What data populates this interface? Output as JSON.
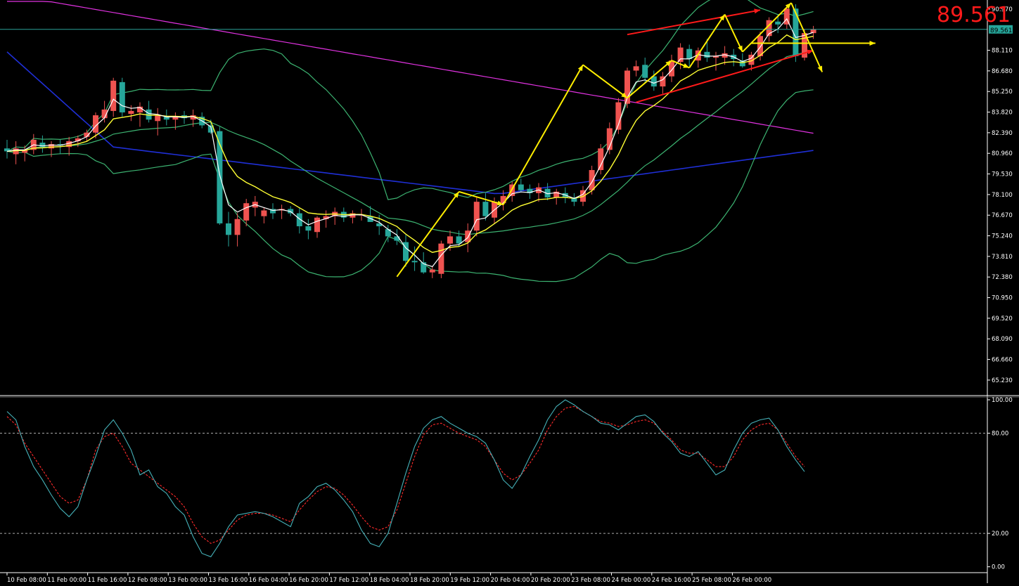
{
  "header": {
    "last_price": "89.561"
  },
  "colors": {
    "background": "#000000",
    "axis": "#ffffff",
    "bull_candle": "#ef5350",
    "bear_candle": "#26a69a",
    "bollinger": "#3cb371",
    "ma_fast": "#ffffff",
    "ma_mid": "#ffff33",
    "ma_blue": "#1f2fd6",
    "ma_magenta": "#e032e0",
    "stoch_main": "#45b1b8",
    "stoch_signal": "#ff2a2a",
    "annotation_yellow": "#ffee00",
    "annotation_red": "#ff1a1a",
    "price_line": "#2aa198",
    "price_tag_bg": "#26a69a"
  },
  "chart_data": [
    {
      "type": "candlestick",
      "panel": "price",
      "y_ticks": [
        "90.970",
        "89.561",
        "88.110",
        "86.680",
        "85.250",
        "83.820",
        "82.390",
        "80.960",
        "79.530",
        "78.100",
        "76.670",
        "75.240",
        "73.810",
        "72.380",
        "70.950",
        "69.520",
        "68.090",
        "66.660",
        "65.230"
      ],
      "ylim": [
        64.3,
        91.5
      ],
      "current_price": 89.561,
      "x_ticks": [
        "10 Feb 08:00",
        "11 Feb 00:00",
        "11 Feb 16:00",
        "12 Feb 08:00",
        "13 Feb 00:00",
        "13 Feb 16:00",
        "16 Feb 04:00",
        "16 Feb 20:00",
        "17 Feb 12:00",
        "18 Feb 04:00",
        "18 Feb 20:00",
        "19 Feb 12:00",
        "20 Feb 04:00",
        "20 Feb 20:00",
        "23 Feb 08:00",
        "24 Feb 00:00",
        "24 Feb 16:00",
        "25 Feb 08:00",
        "26 Feb 00:00"
      ],
      "candles": [
        [
          81.3,
          81.9,
          80.6,
          81.1
        ],
        [
          80.9,
          81.8,
          80.2,
          81.3
        ],
        [
          81.0,
          81.5,
          80.4,
          81.2
        ],
        [
          81.2,
          82.3,
          80.9,
          81.9
        ],
        [
          81.7,
          82.2,
          81.0,
          81.4
        ],
        [
          81.3,
          81.8,
          80.7,
          81.6
        ],
        [
          81.6,
          81.9,
          80.9,
          81.5
        ],
        [
          81.4,
          82.1,
          80.8,
          81.8
        ],
        [
          81.8,
          82.2,
          81.4,
          82.0
        ],
        [
          82.1,
          82.6,
          81.8,
          82.4
        ],
        [
          82.4,
          83.8,
          82.0,
          83.6
        ],
        [
          83.4,
          84.6,
          83.1,
          84.0
        ],
        [
          83.9,
          86.2,
          83.5,
          86.0
        ],
        [
          85.9,
          86.2,
          83.5,
          83.8
        ],
        [
          83.7,
          84.3,
          83.2,
          83.9
        ],
        [
          83.8,
          84.5,
          82.8,
          84.2
        ],
        [
          84.0,
          84.6,
          83.1,
          83.3
        ],
        [
          83.2,
          84.1,
          82.2,
          83.6
        ],
        [
          83.5,
          84.0,
          82.9,
          83.3
        ],
        [
          83.3,
          83.8,
          82.6,
          83.5
        ],
        [
          83.6,
          83.9,
          83.0,
          83.4
        ],
        [
          83.3,
          84.0,
          82.8,
          83.6
        ],
        [
          83.5,
          83.8,
          82.7,
          82.9
        ],
        [
          82.9,
          83.3,
          82.3,
          82.4
        ],
        [
          82.5,
          82.8,
          76.0,
          76.1
        ],
        [
          76.1,
          76.9,
          74.5,
          75.3
        ],
        [
          75.3,
          76.8,
          74.5,
          76.4
        ],
        [
          76.3,
          77.8,
          75.9,
          77.5
        ],
        [
          77.2,
          78.0,
          76.6,
          77.6
        ],
        [
          76.6,
          77.2,
          76.1,
          77.0
        ],
        [
          77.1,
          77.5,
          76.4,
          76.8
        ],
        [
          77.0,
          77.4,
          76.4,
          77.1
        ],
        [
          77.1,
          77.3,
          76.6,
          76.8
        ],
        [
          76.8,
          77.2,
          75.4,
          75.9
        ],
        [
          75.9,
          76.4,
          75.0,
          75.6
        ],
        [
          75.5,
          76.6,
          75.1,
          76.5
        ],
        [
          76.4,
          77.0,
          75.8,
          76.6
        ],
        [
          76.6,
          77.2,
          76.0,
          76.9
        ],
        [
          76.9,
          77.2,
          76.2,
          76.5
        ],
        [
          76.5,
          77.0,
          76.1,
          76.8
        ],
        [
          76.7,
          77.1,
          76.3,
          76.7
        ],
        [
          76.6,
          77.3,
          76.2,
          76.2
        ],
        [
          76.1,
          76.7,
          75.3,
          75.9
        ],
        [
          75.7,
          76.0,
          74.8,
          75.2
        ],
        [
          75.2,
          75.7,
          74.6,
          74.9
        ],
        [
          74.8,
          75.3,
          73.1,
          73.5
        ],
        [
          73.5,
          74.5,
          72.8,
          73.4
        ],
        [
          73.4,
          74.1,
          72.6,
          72.7
        ],
        [
          72.7,
          73.1,
          72.3,
          72.9
        ],
        [
          72.6,
          74.9,
          72.3,
          74.7
        ],
        [
          74.7,
          75.6,
          74.2,
          75.2
        ],
        [
          75.2,
          75.6,
          74.5,
          74.7
        ],
        [
          74.8,
          76.1,
          74.1,
          75.6
        ],
        [
          75.6,
          77.9,
          75.2,
          77.6
        ],
        [
          77.6,
          78.2,
          76.3,
          76.6
        ],
        [
          76.5,
          77.9,
          76.1,
          77.6
        ],
        [
          77.5,
          78.4,
          77.0,
          78.0
        ],
        [
          78.0,
          79.0,
          77.6,
          78.8
        ],
        [
          78.8,
          79.2,
          78.3,
          78.4
        ],
        [
          78.5,
          78.8,
          77.8,
          78.2
        ],
        [
          78.2,
          78.9,
          77.6,
          78.6
        ],
        [
          78.5,
          78.9,
          77.7,
          77.9
        ],
        [
          77.9,
          78.5,
          77.4,
          78.3
        ],
        [
          78.2,
          78.6,
          77.5,
          77.9
        ],
        [
          77.9,
          78.2,
          77.3,
          77.6
        ],
        [
          77.6,
          78.7,
          77.3,
          78.4
        ],
        [
          78.4,
          80.1,
          78.1,
          79.8
        ],
        [
          79.8,
          81.6,
          79.5,
          81.3
        ],
        [
          81.2,
          83.1,
          80.9,
          82.7
        ],
        [
          82.6,
          84.8,
          82.3,
          84.5
        ],
        [
          84.4,
          86.9,
          84.1,
          86.7
        ],
        [
          86.7,
          87.4,
          86.3,
          87.0
        ],
        [
          87.1,
          87.6,
          85.8,
          86.2
        ],
        [
          86.3,
          86.7,
          85.3,
          85.6
        ],
        [
          85.6,
          86.6,
          85.1,
          86.3
        ],
        [
          86.3,
          87.8,
          85.9,
          87.4
        ],
        [
          87.3,
          88.6,
          86.8,
          88.3
        ],
        [
          88.2,
          88.5,
          87.0,
          87.5
        ],
        [
          87.4,
          88.3,
          86.9,
          88.1
        ],
        [
          88.0,
          88.9,
          87.3,
          87.6
        ],
        [
          87.6,
          88.0,
          86.7,
          87.7
        ],
        [
          87.6,
          88.4,
          87.1,
          87.9
        ],
        [
          87.8,
          88.2,
          87.0,
          87.5
        ],
        [
          87.4,
          87.9,
          86.9,
          87.0
        ],
        [
          87.1,
          88.0,
          86.7,
          87.8
        ],
        [
          87.7,
          89.4,
          87.4,
          89.1
        ],
        [
          89.1,
          90.4,
          88.7,
          90.2
        ],
        [
          90.1,
          90.6,
          89.3,
          89.9
        ],
        [
          89.9,
          91.2,
          89.6,
          91.0
        ],
        [
          91.0,
          91.3,
          87.3,
          87.7
        ],
        [
          87.6,
          89.6,
          87.4,
          89.3
        ],
        [
          89.3,
          89.8,
          88.9,
          89.56
        ]
      ]
    },
    {
      "type": "line",
      "panel": "stochastic",
      "y_ticks": [
        "100.00",
        "80.00",
        "20.00",
        "0.00"
      ],
      "ylim": [
        0,
        100
      ],
      "levels": [
        80,
        20
      ],
      "series": [
        {
          "values": [
            93,
            88,
            72,
            60,
            52,
            43,
            35,
            30,
            36,
            52,
            66,
            82,
            88,
            80,
            70,
            55,
            58,
            48,
            44,
            36,
            31,
            18,
            8,
            6,
            14,
            24,
            31,
            32,
            33,
            32,
            30,
            27,
            24,
            38,
            42,
            48,
            50,
            46,
            40,
            33,
            22,
            14,
            12,
            20,
            38,
            56,
            72,
            83,
            88,
            90,
            86,
            83,
            80,
            78,
            74,
            64,
            52,
            47,
            55,
            66,
            76,
            88,
            96,
            100,
            97,
            93,
            90,
            86,
            85,
            82,
            86,
            90,
            91,
            87,
            80,
            75,
            68,
            66,
            69,
            62,
            55,
            58,
            70,
            80,
            86,
            88,
            89,
            82,
            72,
            64,
            57
          ]
        },
        {
          "values": [
            90,
            85,
            74,
            66,
            58,
            50,
            42,
            38,
            40,
            52,
            70,
            78,
            80,
            72,
            62,
            58,
            54,
            50,
            46,
            42,
            36,
            26,
            18,
            14,
            16,
            22,
            28,
            31,
            32,
            32,
            31,
            29,
            27,
            34,
            40,
            45,
            48,
            47,
            43,
            37,
            30,
            24,
            22,
            24,
            34,
            50,
            66,
            79,
            85,
            86,
            83,
            80,
            78,
            76,
            72,
            64,
            56,
            52,
            55,
            62,
            70,
            82,
            90,
            95,
            96,
            93,
            90,
            87,
            86,
            84,
            85,
            87,
            88,
            86,
            81,
            76,
            70,
            68,
            68,
            64,
            60,
            60,
            66,
            76,
            82,
            85,
            86,
            82,
            74,
            66,
            60
          ]
        }
      ]
    }
  ]
}
